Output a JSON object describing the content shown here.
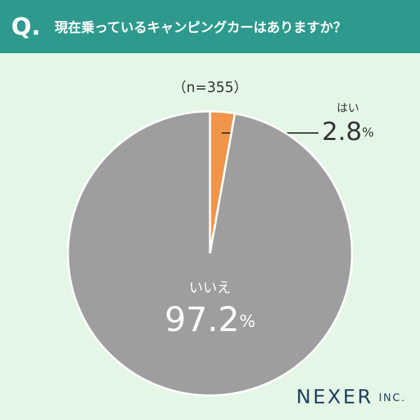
{
  "header_label": "Q.",
  "logo": {
    "name": "NEXER",
    "suffix": "INC."
  },
  "chart_data": {
    "type": "pie",
    "title": "現在乗っているキャンピングカーはありますか？",
    "subtitle": "（n=355）",
    "categories": [
      "はい",
      "いいえ"
    ],
    "values": [
      2.8,
      97.2
    ],
    "unit": "%",
    "colors": [
      "#f0954a",
      "#9e9e9e"
    ],
    "label_colors": [
      "#333333",
      "#ffffff"
    ]
  }
}
